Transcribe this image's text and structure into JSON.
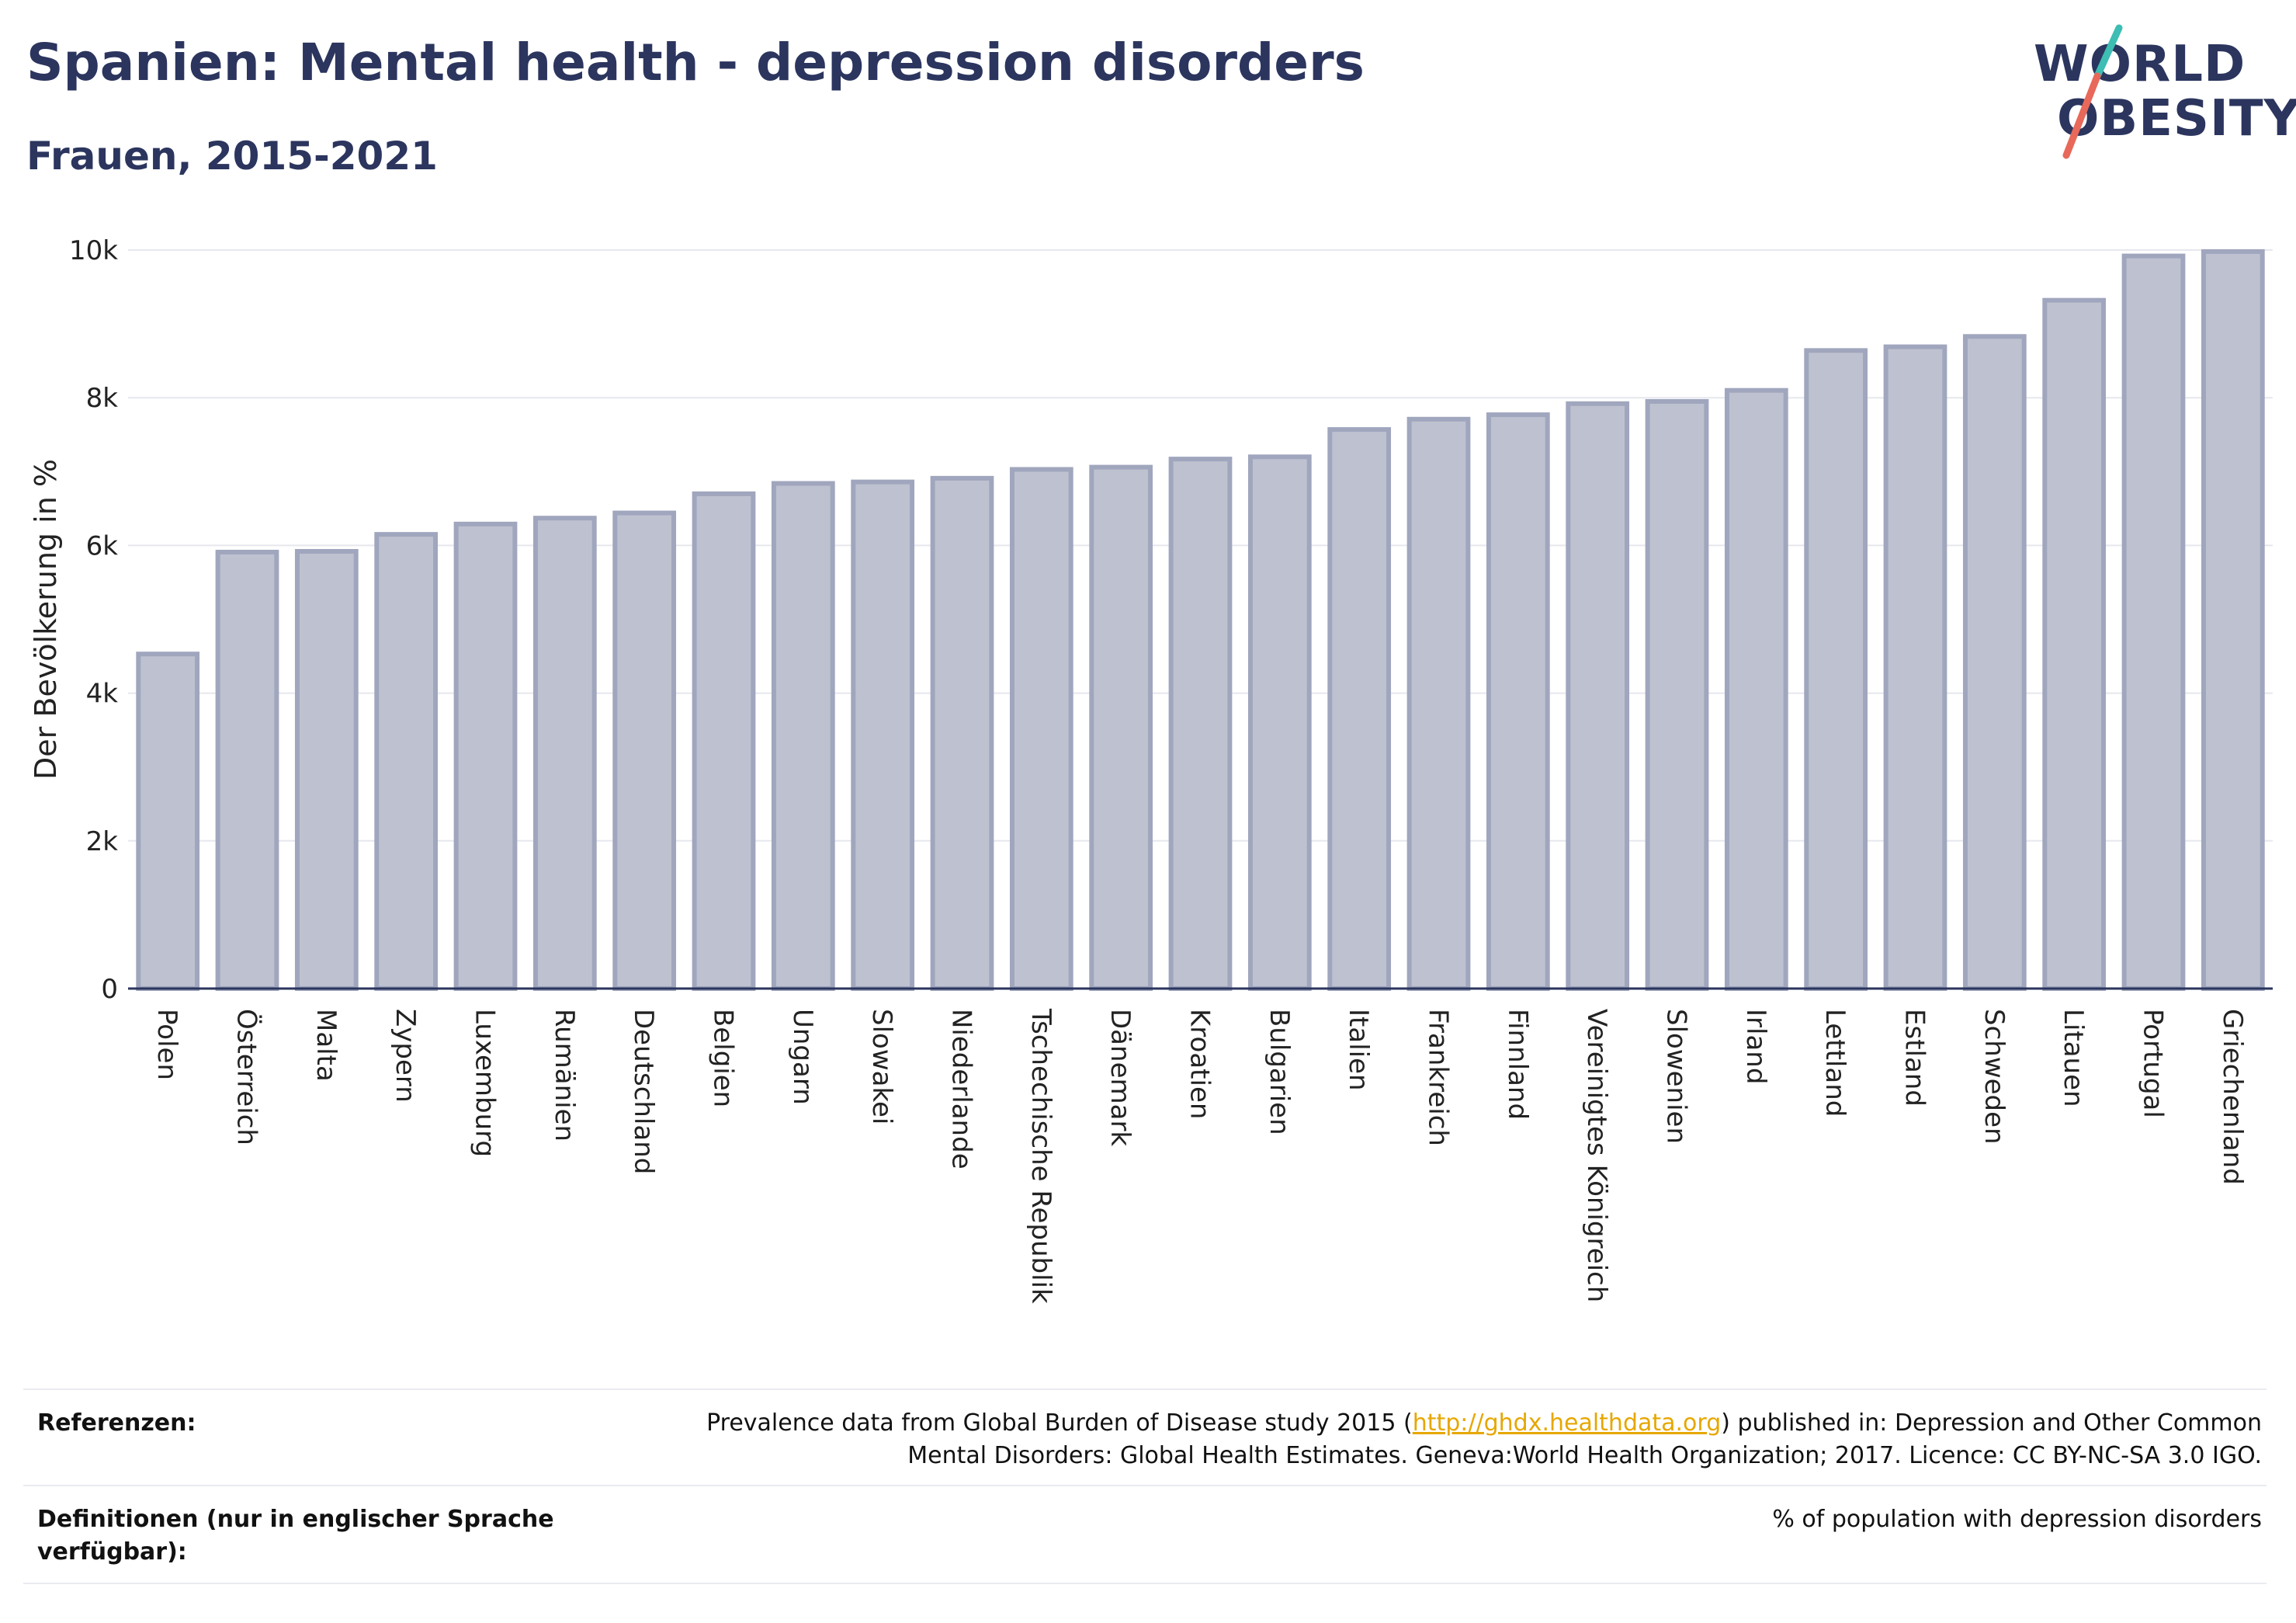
{
  "title": "Spanien: Mental health - depression disorders",
  "subtitle": "Frauen, 2015-2021",
  "logo": {
    "line1": "WORLD",
    "line2": "OBESITY",
    "accent_teal": "#3dbdb3",
    "accent_red": "#e8685a"
  },
  "colors": {
    "bar_fill": "#bec2d0",
    "bar_stroke": "#a0a6bd",
    "text": "#2b355e",
    "grid": "#e6e8ee",
    "link": "#e6a700"
  },
  "chart_data": {
    "type": "bar",
    "ylabel": "Der Bevölkerung in %",
    "xlabel": "",
    "ylim": [
      0,
      10000
    ],
    "yticks": [
      0,
      2000,
      4000,
      6000,
      8000,
      10000
    ],
    "ytick_labels": [
      "0",
      "2k",
      "4k",
      "6k",
      "8k",
      "10k"
    ],
    "grid": true,
    "categories": [
      "Polen",
      "Österreich",
      "Malta",
      "Zypern",
      "Luxemburg",
      "Rumänien",
      "Deutschland",
      "Belgien",
      "Ungarn",
      "Slowakei",
      "Niederlande",
      "Tschechische Republik",
      "Dänemark",
      "Kroatien",
      "Bulgarien",
      "Italien",
      "Frankreich",
      "Finnland",
      "Vereinigtes Königreich",
      "Slowenien",
      "Irland",
      "Lettland",
      "Estland",
      "Schweden",
      "Litauen",
      "Portugal",
      "Griechenland"
    ],
    "values": [
      4530,
      5910,
      5920,
      6150,
      6290,
      6370,
      6440,
      6700,
      6840,
      6860,
      6910,
      7030,
      7060,
      7170,
      7200,
      7570,
      7710,
      7770,
      7920,
      7950,
      8100,
      8640,
      8690,
      8830,
      9320,
      9920,
      9980
    ]
  },
  "footer": {
    "ref_label": "Referenzen:",
    "ref_text_before": "Prevalence data from Global Burden of Disease study 2015 (",
    "ref_link": "http://ghdx.healthdata.org",
    "ref_text_after": ") published in: Depression and Other Common Mental Disorders: Global Health Estimates. Geneva:World Health Organization; 2017. Licence: CC BY-NC-SA 3.0 IGO.",
    "def_label": "Definitionen (nur in englischer Sprache verfügbar):",
    "def_text": "% of population with depression disorders"
  }
}
